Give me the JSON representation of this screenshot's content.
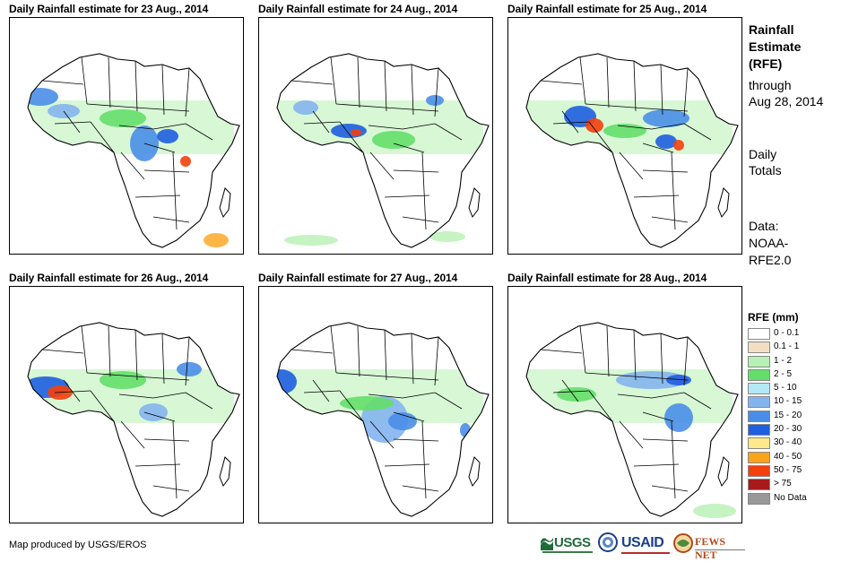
{
  "panels": [
    {
      "title": "Daily Rainfall estimate for 23 Aug., 2014"
    },
    {
      "title": "Daily Rainfall estimate for 24 Aug., 2014"
    },
    {
      "title": "Daily Rainfall estimate for 25 Aug., 2014"
    },
    {
      "title": "Daily Rainfall estimate for 26 Aug., 2014"
    },
    {
      "title": "Daily Rainfall estimate for 27 Aug., 2014"
    },
    {
      "title": "Daily Rainfall estimate for 28 Aug., 2014"
    }
  ],
  "sidebar": {
    "title_line1": "Rainfall",
    "title_line2": "Estimate",
    "title_line3": "(RFE)",
    "through_label": "through",
    "through_date": "Aug 28, 2014",
    "totals_line1": "Daily",
    "totals_line2": "Totals",
    "data_line1": "Data:",
    "data_line2": "NOAA-",
    "data_line3": "RFE2.0"
  },
  "legend": {
    "title": "RFE (mm)",
    "items": [
      {
        "label": "0 - 0.1",
        "color": "#ffffff"
      },
      {
        "label": "0.1 - 1",
        "color": "#f2dfc2"
      },
      {
        "label": "1 - 2",
        "color": "#b6f0b2"
      },
      {
        "label": "2 - 5",
        "color": "#64de6a"
      },
      {
        "label": "5 - 10",
        "color": "#b4e8f2"
      },
      {
        "label": "10 - 15",
        "color": "#84b4ee"
      },
      {
        "label": "15 - 20",
        "color": "#4a8ee8"
      },
      {
        "label": "20 - 30",
        "color": "#1e5ee0"
      },
      {
        "label": "30 - 40",
        "color": "#fde88c"
      },
      {
        "label": "40 - 50",
        "color": "#fba41a"
      },
      {
        "label": "50 - 75",
        "color": "#f4400c"
      },
      {
        "label": "> 75",
        "color": "#a81a1a"
      },
      {
        "label": "No Data",
        "color": "#989898"
      }
    ]
  },
  "credit": "Map produced by USGS/EROS",
  "logos": {
    "usgs": "USGS",
    "usaid": "USAID",
    "fewsnet": "FEWS NET"
  }
}
